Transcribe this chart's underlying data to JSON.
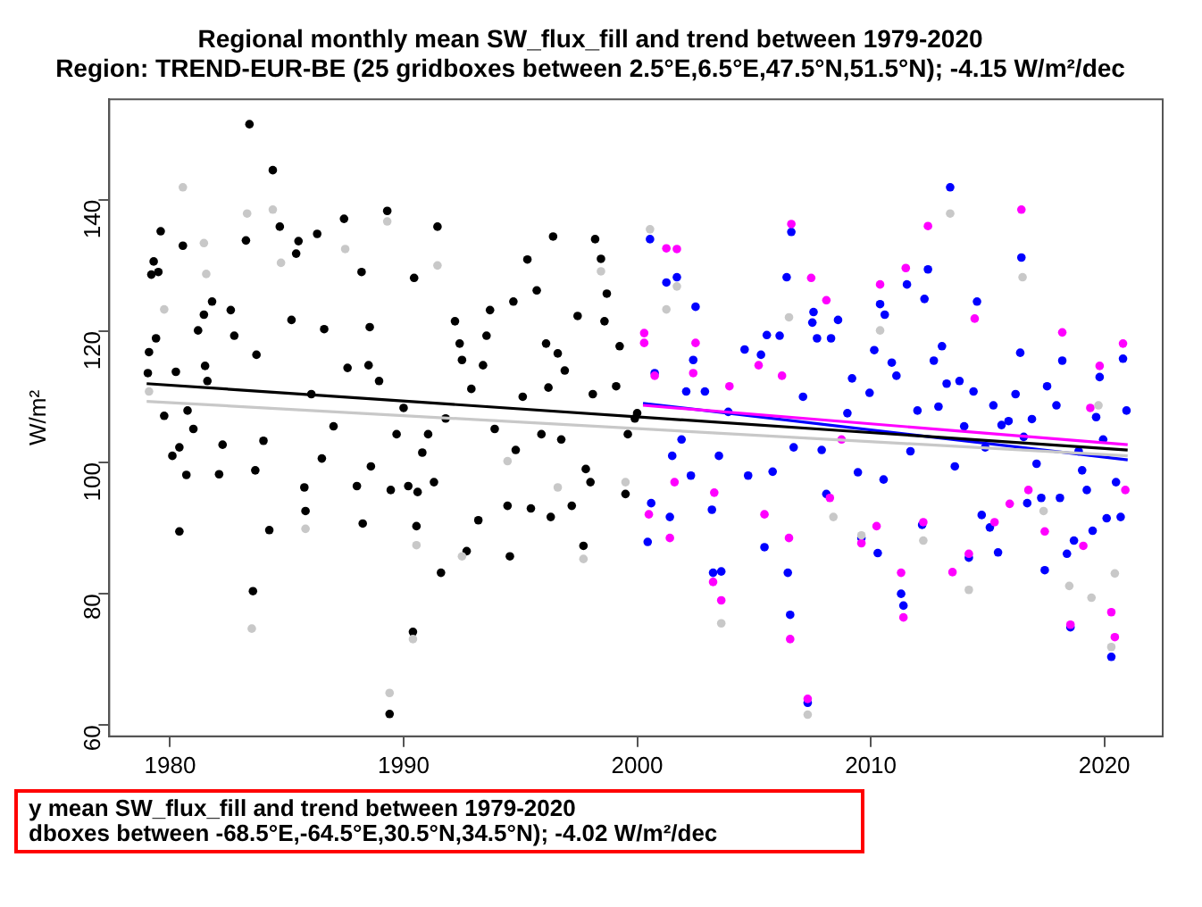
{
  "chart_data": {
    "type": "scatter",
    "title": "Regional monthly mean SW_flux_fill and trend between 1979-2020",
    "subtitle": "Region: TREND-EUR-BE (25 gridboxes between 2.5°E,6.5°E,47.5°N,51.5°N); -4.15 W/m²/dec",
    "ylabel": "W/m²",
    "xlim": [
      1977.4,
      2022.5
    ],
    "xticks": [
      1980,
      1990,
      2000,
      2010,
      2020
    ],
    "ylim": [
      58.3,
      155.3
    ],
    "yticks": [
      60,
      80,
      100,
      120,
      140
    ],
    "grid": false,
    "legend": false,
    "marker": "circle",
    "series": [
      {
        "color": "#c8c8c8",
        "x": [
          1979.1,
          1979.75,
          1980.55,
          1981.45,
          1981.55,
          1983.3,
          1983.5,
          1984.4,
          1984.75,
          1985.8,
          1987.5,
          1989.3,
          1989.4,
          1990.4,
          1990.55,
          1991.45,
          1992.5,
          1994.45,
          1996.6,
          1997.7,
          1998.45,
          1999.5,
          2000.55,
          2001.25,
          2001.7,
          2003.6,
          2006.5,
          2007.3,
          2008.4,
          2009.6,
          2010.4,
          2012.25,
          2013.4,
          2014.2,
          2016.5,
          2017.4,
          2018.5,
          2019.45,
          2019.75,
          2020.3,
          2020.45
        ],
        "values": [
          110.8,
          123.3,
          141.9,
          133.4,
          128.7,
          137.9,
          74.7,
          138.5,
          130.4,
          89.9,
          132.5,
          136.7,
          64.9,
          73.1,
          87.4,
          130,
          85.7,
          100.2,
          96.2,
          85.3,
          129.1,
          97,
          135.5,
          123.3,
          126.8,
          75.5,
          122.1,
          61.6,
          91.7,
          88.9,
          120.1,
          88.1,
          137.9,
          80.6,
          128.2,
          92.6,
          81.2,
          79.4,
          108.7,
          71.9,
          83.1
        ]
      },
      {
        "color": "#000000",
        "x": [
          1979.05,
          1979.1,
          1979.2,
          1979.3,
          1979.4,
          1979.5,
          1979.6,
          1979.75,
          1980.1,
          1980.25,
          1980.4,
          1980.55,
          1980.7,
          1980.75,
          1980.4,
          1981,
          1981.2,
          1981.45,
          1981.8,
          1981.5,
          1981.6,
          1982.1,
          1982.25,
          1982.6,
          1982.75,
          1983.25,
          1983.4,
          1983.55,
          1983.7,
          1984,
          1983.65,
          1984.4,
          1984.25,
          1984.7,
          1985.2,
          1985.4,
          1985.5,
          1985.75,
          1985.8,
          1986.05,
          1986.3,
          1986.5,
          1986.6,
          1987,
          1987.45,
          1987.6,
          1988,
          1988.2,
          1988.25,
          1988.5,
          1988.55,
          1988.6,
          1988.95,
          1989.3,
          1989.4,
          1989.45,
          1989.7,
          1990,
          1990.2,
          1990.45,
          1990.4,
          1990.6,
          1990.55,
          1990.8,
          1991.05,
          1991.3,
          1991.45,
          1991.6,
          1991.8,
          1992.2,
          1992.4,
          1992.5,
          1992.7,
          1992.9,
          1993.2,
          1993.4,
          1993.55,
          1993.7,
          1993.9,
          1994.45,
          1994.55,
          1994.7,
          1994.8,
          1995.1,
          1995.3,
          1995.45,
          1995.7,
          1995.9,
          1996.1,
          1996.2,
          1996.3,
          1996.4,
          1996.6,
          1996.75,
          1996.9,
          1997.2,
          1997.45,
          1997.7,
          1997.8,
          1998,
          1998.1,
          1998.2,
          1998.45,
          1998.7,
          1998.6,
          1999.1,
          1999.25,
          1999.5,
          1999.6,
          1999.9,
          2000
        ],
        "values": [
          113.6,
          116.8,
          128.6,
          130.6,
          118.9,
          129,
          135.2,
          107.1,
          101,
          113.8,
          102.3,
          133,
          98.1,
          107.9,
          89.5,
          105.1,
          120.1,
          122.5,
          124.5,
          114.7,
          112.4,
          98.2,
          102.7,
          123.2,
          119.3,
          133.8,
          151.5,
          80.4,
          116.4,
          103.3,
          98.8,
          144.5,
          89.7,
          135.9,
          121.7,
          131.8,
          133.7,
          96.2,
          92.6,
          110.4,
          134.8,
          100.6,
          120.3,
          105.5,
          137.1,
          114.4,
          96.4,
          129,
          90.7,
          114.8,
          120.6,
          99.4,
          112.4,
          138.3,
          61.7,
          95.8,
          104.3,
          108.3,
          96.4,
          128.1,
          74.2,
          95.5,
          90.3,
          101.5,
          104.3,
          97,
          135.9,
          83.2,
          106.7,
          121.5,
          118.1,
          115.6,
          86.5,
          111.2,
          91.2,
          114.8,
          119.3,
          123.2,
          105.1,
          93.4,
          85.7,
          124.5,
          101.9,
          110,
          130.9,
          93,
          126.2,
          104.3,
          118.1,
          111.4,
          91.7,
          134.4,
          116.6,
          103.5,
          114,
          93.4,
          122.3,
          87.3,
          99,
          97,
          110.4,
          134,
          131,
          125.7,
          121.5,
          111.6,
          117.7,
          95.2,
          104.3,
          106.7,
          107.5
        ]
      },
      {
        "color": "#ff00ff",
        "x": [
          2000.3,
          2000.3,
          2000.5,
          2000.75,
          2001.25,
          2001.7,
          2001.4,
          2001.6,
          2002.4,
          2002.5,
          2003.25,
          2003.6,
          2003.3,
          2003.95,
          2005.2,
          2005.45,
          2006.2,
          2006.6,
          2006.55,
          2006.5,
          2007.3,
          2007.45,
          2008.1,
          2008.25,
          2008.75,
          2009.6,
          2010.25,
          2010.4,
          2011.5,
          2011.3,
          2011.4,
          2012.25,
          2012.45,
          2013.5,
          2014.2,
          2014.45,
          2015.3,
          2015.95,
          2016.45,
          2016.75,
          2017.45,
          2018.2,
          2018.55,
          2019.1,
          2019.4,
          2019.8,
          2020.3,
          2020.45,
          2020.8,
          2020.9
        ],
        "values": [
          119.7,
          118.2,
          92.1,
          113.2,
          132.6,
          132.5,
          88.5,
          97,
          113.6,
          118.2,
          81.8,
          79,
          95.4,
          111.6,
          114.8,
          92.1,
          113.2,
          136.3,
          73.1,
          88.5,
          64,
          128.1,
          124.7,
          94.6,
          103.5,
          87.7,
          90.3,
          127.1,
          129.6,
          83.2,
          76.4,
          90.9,
          136,
          83.3,
          86.1,
          121.9,
          90.9,
          93.7,
          138.5,
          95.8,
          89.5,
          119.8,
          75.3,
          87.3,
          108.3,
          114.7,
          77.2,
          73.4,
          118.1,
          95.8
        ]
      },
      {
        "color": "#0000ff",
        "x": [
          2000.55,
          2000.45,
          2000.6,
          2000.75,
          2001.25,
          2001.7,
          2001.4,
          2001.5,
          2001.9,
          2002.1,
          2002.5,
          2002.4,
          2002.3,
          2002.9,
          2003.2,
          2003.25,
          2003.6,
          2003.5,
          2003.9,
          2004.6,
          2004.75,
          2005.3,
          2005.45,
          2005.55,
          2005.8,
          2006.1,
          2006.4,
          2006.6,
          2006.45,
          2006.55,
          2006.7,
          2007.1,
          2007.3,
          2007.5,
          2007.55,
          2007.7,
          2007.9,
          2008.1,
          2008.3,
          2008.6,
          2009,
          2009.2,
          2009.45,
          2009.6,
          2009.95,
          2010.15,
          2010.3,
          2010.4,
          2010.55,
          2010.6,
          2010.9,
          2011.1,
          2011.3,
          2011.4,
          2011.55,
          2011.7,
          2012,
          2012.2,
          2012.3,
          2012.45,
          2012.7,
          2012.9,
          2013.05,
          2013.25,
          2013.4,
          2013.6,
          2013.8,
          2014,
          2014.2,
          2014.4,
          2014.55,
          2014.75,
          2014.9,
          2015.1,
          2015.25,
          2015.45,
          2015.6,
          2015.9,
          2016.2,
          2016.4,
          2016.45,
          2016.55,
          2016.7,
          2016.9,
          2017.1,
          2017.3,
          2017.45,
          2017.55,
          2017.95,
          2018.1,
          2018.2,
          2018.4,
          2018.55,
          2018.7,
          2018.9,
          2019.05,
          2019.25,
          2019.5,
          2019.65,
          2019.8,
          2019.95,
          2020.1,
          2020.3,
          2020.5,
          2020.7,
          2020.8,
          2020.95
        ],
        "values": [
          134,
          87.9,
          93.8,
          113.6,
          127.4,
          128.2,
          91.7,
          101,
          103.5,
          110.8,
          123.7,
          115.6,
          98,
          110.8,
          92.8,
          83.2,
          83.4,
          101,
          107.7,
          117.2,
          98,
          116.4,
          87.1,
          119.4,
          98.6,
          119.3,
          128.2,
          135.1,
          83.2,
          76.8,
          102.3,
          110,
          63.4,
          121.3,
          122.9,
          118.9,
          101.9,
          95.2,
          118.9,
          121.7,
          107.5,
          112.8,
          98.5,
          88.5,
          110.6,
          117.1,
          86.2,
          124.1,
          97.4,
          122.5,
          115.2,
          113.2,
          80,
          78.2,
          127.1,
          101.7,
          107.9,
          90.5,
          124.9,
          129.4,
          115.5,
          108.5,
          117.7,
          112,
          141.9,
          99.4,
          112.4,
          105.5,
          85.5,
          110.8,
          124.5,
          92,
          102.3,
          90.1,
          108.7,
          86.3,
          105.7,
          106.3,
          110.4,
          116.7,
          131.2,
          103.9,
          93.8,
          106.6,
          99.8,
          94.6,
          83.6,
          111.6,
          108.7,
          94.6,
          115.5,
          86.1,
          74.9,
          88.1,
          101.7,
          98.8,
          95.8,
          89.6,
          106.9,
          113,
          103.5,
          91.5,
          70.4,
          97,
          91.7,
          115.8,
          107.9
        ]
      },
      {
        "type": "line",
        "marker": "none",
        "color": "#c8c8c8",
        "x": [
          1979,
          2021
        ],
        "values": [
          109.3,
          101
        ]
      },
      {
        "type": "line",
        "marker": "none",
        "color": "#000000",
        "x": [
          1979,
          2021
        ],
        "values": [
          112,
          101.9
        ]
      },
      {
        "type": "line",
        "marker": "none",
        "color": "#ff00ff",
        "x": [
          2000.25,
          2021
        ],
        "values": [
          108.7,
          102.7
        ]
      },
      {
        "type": "line",
        "marker": "none",
        "color": "#0000ff",
        "x": [
          2000.25,
          2021
        ],
        "values": [
          109,
          100.4
        ]
      }
    ],
    "annotations": [
      "y mean SW_flux_fill and trend between 1979-2020",
      "dboxes between -68.5°E,-64.5°E,30.5°N,34.5°N); -4.02 W/m²/dec"
    ]
  }
}
